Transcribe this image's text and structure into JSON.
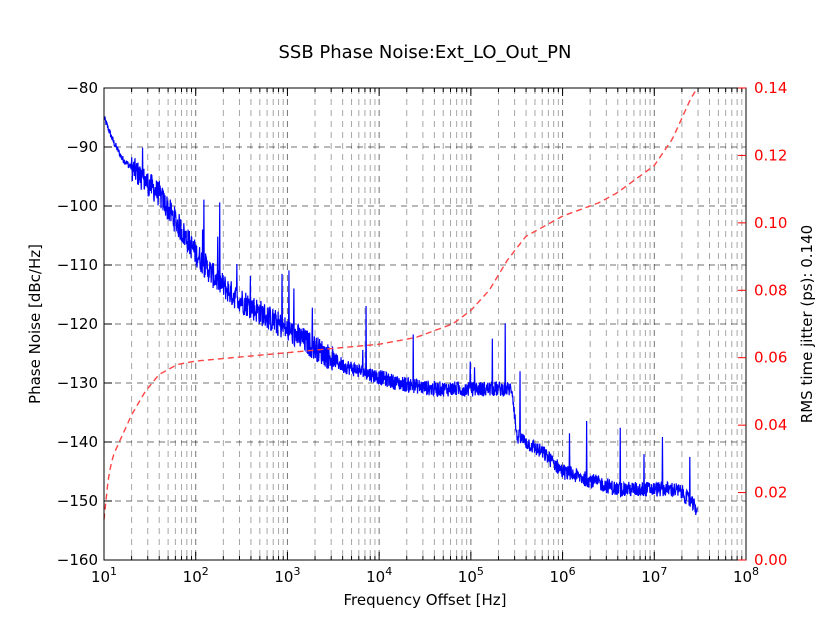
{
  "chart_data": {
    "type": "line",
    "title": "SSB Phase Noise:Ext_LO_Out_PN",
    "xlabel": "Frequency Offset [Hz]",
    "ylabel": "Phase Noise [dBc/Hz]",
    "y2label": "RMS time jitter (ps): 0.140",
    "xscale": "log",
    "xlim_exp": [
      1,
      8
    ],
    "x_tick_labels": [
      {
        "base": "10",
        "exp": "1"
      },
      {
        "base": "10",
        "exp": "2"
      },
      {
        "base": "10",
        "exp": "3"
      },
      {
        "base": "10",
        "exp": "4"
      },
      {
        "base": "10",
        "exp": "5"
      },
      {
        "base": "10",
        "exp": "6"
      },
      {
        "base": "10",
        "exp": "7"
      },
      {
        "base": "10",
        "exp": "8"
      }
    ],
    "ylim": [
      -160,
      -80
    ],
    "y_ticks": [
      -80,
      -90,
      -100,
      -110,
      -120,
      -130,
      -140,
      -150,
      -160
    ],
    "y_tick_labels": [
      "−80",
      "−90",
      "−100",
      "−110",
      "−120",
      "−130",
      "−140",
      "−150",
      "−160"
    ],
    "y2lim": [
      0.0,
      0.14
    ],
    "y2_ticks": [
      0.14,
      0.12,
      0.1,
      0.08,
      0.06,
      0.04,
      0.02,
      0.0
    ],
    "y2_tick_labels": [
      "0.14",
      "0.12",
      "0.10",
      "0.08",
      "0.06",
      "0.04",
      "0.02",
      "0.00"
    ],
    "grid": true,
    "colors": {
      "phase_noise": "#0000ff",
      "jitter": "#ff4444",
      "y2_axis": "#ff0000"
    },
    "series": [
      {
        "name": "Phase Noise",
        "axis": "left",
        "style": "solid",
        "noisy": true,
        "x_log": [
          1.0,
          1.1,
          1.2,
          1.4,
          1.6,
          1.8,
          2.0,
          2.2,
          2.4,
          2.6,
          2.8,
          3.0,
          3.2,
          3.4,
          3.6,
          3.8,
          4.0,
          4.2,
          4.4,
          4.6,
          4.8,
          5.0,
          5.2,
          5.35,
          5.45,
          5.5,
          5.6,
          5.8,
          6.0,
          6.2,
          6.4,
          6.6,
          6.8,
          7.0,
          7.2,
          7.3,
          7.47
        ],
        "y": [
          -85,
          -89,
          -92,
          -95,
          -98,
          -103,
          -108,
          -112,
          -115,
          -117,
          -119,
          -121,
          -123,
          -125,
          -127,
          -128,
          -129,
          -130,
          -130.5,
          -131,
          -131,
          -131,
          -131,
          -131,
          -131,
          -139,
          -140,
          -142,
          -145,
          -146,
          -147,
          -148,
          -148,
          -148,
          -148,
          -148.5,
          -151.5
        ]
      },
      {
        "name": "RMS time jitter",
        "axis": "right",
        "style": "dashed",
        "x_log": [
          1.0,
          1.05,
          1.1,
          1.2,
          1.3,
          1.45,
          1.6,
          1.8,
          2.0,
          2.4,
          2.8,
          3.2,
          3.6,
          4.0,
          4.4,
          4.8,
          5.0,
          5.2,
          5.4,
          5.6,
          5.8,
          6.0,
          6.2,
          6.4,
          6.6,
          6.8,
          7.0,
          7.2,
          7.4,
          7.47
        ],
        "y": [
          0.012,
          0.025,
          0.031,
          0.037,
          0.043,
          0.05,
          0.055,
          0.058,
          0.059,
          0.06,
          0.061,
          0.062,
          0.063,
          0.064,
          0.066,
          0.07,
          0.074,
          0.08,
          0.089,
          0.096,
          0.099,
          0.102,
          0.104,
          0.106,
          0.109,
          0.113,
          0.117,
          0.125,
          0.137,
          0.14
        ]
      }
    ]
  }
}
